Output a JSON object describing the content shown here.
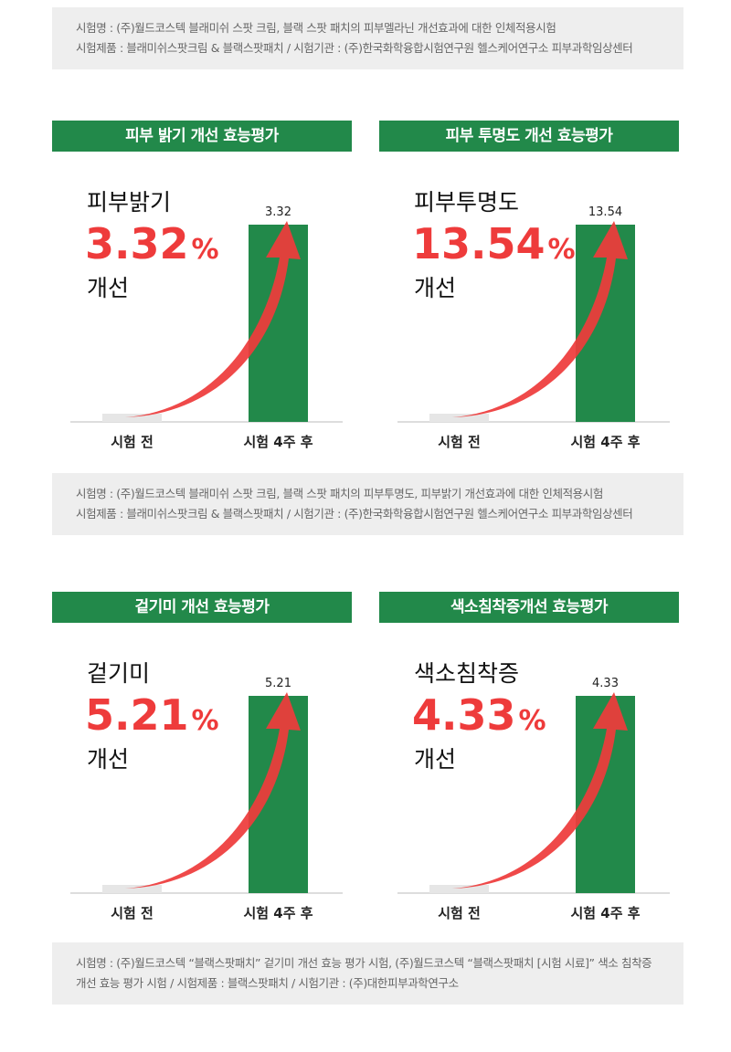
{
  "notes": [
    {
      "lines": [
        "시험명 : (주)월드코스텍 블래미쉬 스팟 크림, 블랙 스팟 패치의 피부멜라닌 개선효과에 대한 인체적용시험",
        "시험제품 : 블래미쉬스팟크림 & 블랙스팟패치 / 시험기관 : (주)한국화학융합시험연구원 헬스케어연구소 피부과학임상센터"
      ]
    },
    {
      "lines": [
        "시험명 : (주)월드코스텍 블래미쉬 스팟 크림, 블랙 스팟 패치의 피부투명도, 피부밝기 개선효과에 대한 인체적용시험",
        "시험제품 : 블래미쉬스팟크림 & 블랙스팟패치 / 시험기관 : (주)한국화학융합시험연구원 헬스케어연구소 피부과학임상센터"
      ]
    },
    {
      "lines": [
        "시험명 : (주)월드코스텍 “블랙스팟패치” 겉기미 개선 효능 평가 시험, (주)월드코스텍 “블랙스팟패치 [시험 시료]” 색소 침착증",
        "개선 효능 평가 시험 / 시험제품 : 블랙스팟패치 / 시험기관 : (주)대한피부과학연구소"
      ]
    }
  ],
  "colors": {
    "green": "#22894a",
    "red": "#ee3b3b",
    "before_bar": "#e6e6e6"
  },
  "chart_data": [
    {
      "type": "bar",
      "title": "피부 밝기 개선 효능평가",
      "metric": "피부밝기",
      "highlight_value": "3.32",
      "percent_sign": "%",
      "suffix": "개선",
      "categories": [
        "시험 전",
        "시험 4주 후"
      ],
      "values": [
        0,
        3.32
      ],
      "value_labels": [
        "",
        "3.32"
      ]
    },
    {
      "type": "bar",
      "title": "피부 투명도 개선 효능평가",
      "metric": "피부투명도",
      "highlight_value": "13.54",
      "percent_sign": "%",
      "suffix": "개선",
      "categories": [
        "시험 전",
        "시험 4주 후"
      ],
      "values": [
        0,
        13.54
      ],
      "value_labels": [
        "",
        "13.54"
      ]
    },
    {
      "type": "bar",
      "title": "겉기미 개선 효능평가",
      "metric": "겉기미",
      "highlight_value": "5.21",
      "percent_sign": "%",
      "suffix": "개선",
      "categories": [
        "시험 전",
        "시험 4주 후"
      ],
      "values": [
        0,
        5.21
      ],
      "value_labels": [
        "",
        "5.21"
      ]
    },
    {
      "type": "bar",
      "title": "색소침착증개선 효능평가",
      "metric": "색소침착증",
      "highlight_value": "4.33",
      "percent_sign": "%",
      "suffix": "개선",
      "categories": [
        "시험 전",
        "시험 4주 후"
      ],
      "values": [
        0,
        4.33
      ],
      "value_labels": [
        "",
        "4.33"
      ]
    }
  ]
}
